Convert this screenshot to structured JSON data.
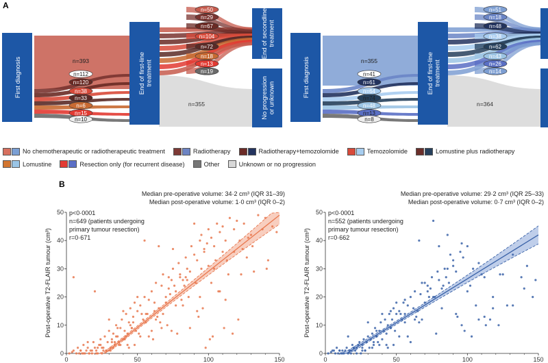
{
  "panel_labels": {
    "a": "A",
    "b": "B"
  },
  "sankey": {
    "node_labels": {
      "first": "First diagnosis",
      "firstline": "End of first-line treatment",
      "second": "End of secondline treatment",
      "noprog": "No progression or unknown"
    },
    "left": {
      "top_flow": "n=393",
      "stack1": [
        "n=112",
        "n=120",
        "n=38",
        "n=33",
        "n=6",
        "n=15",
        "n=10"
      ],
      "stack2": [
        "n=50",
        "n=29",
        "n=67",
        "n=104",
        "n=72",
        "n=18",
        "n=13",
        "n=19"
      ],
      "noprog": "n=355"
    },
    "right": {
      "top_flow": "n=355",
      "stack1": [
        "n=41",
        "n=61",
        "n=64",
        "n=74",
        "n=48",
        "n=13",
        "n=8"
      ],
      "stack2": [
        "n=51",
        "n=18",
        "n=48",
        "n=38",
        "n=62",
        "n=43",
        "n=26",
        "n=14"
      ],
      "noprog": "n=364"
    },
    "colors": {
      "left": [
        "#c55a4c",
        "#7a3430",
        "#6a2a24",
        "#d84a3a",
        "#5a2a26",
        "#c86a32",
        "#e23a32",
        "#6a6a6a",
        "#cfcfcf"
      ],
      "right": [
        "#7d9ed2",
        "#6a85c6",
        "#23335e",
        "#a8ccef",
        "#26405c",
        "#9cc4e4",
        "#5a6fc4",
        "#6a6a6a",
        "#cfcfcf"
      ]
    }
  },
  "legend": [
    {
      "label": "No chemotherapeutic or radiotherapeutic treatment",
      "c1": "#d7705f",
      "c2": "#7a9fd4"
    },
    {
      "label": "Radiotherapy",
      "c1": "#7e3a36",
      "c2": "#6d84c4"
    },
    {
      "label": "Radiotherapy+temozolomide",
      "c1": "#6b2b26",
      "c2": "#23335e"
    },
    {
      "label": "Temozolomide",
      "c1": "#d84a3a",
      "c2": "#a7cdef"
    },
    {
      "label": "Lomustine plus radiotherapy",
      "c1": "#6a2e2a",
      "c2": "#26405c"
    },
    {
      "label": "Lomustine",
      "c1": "#d2752f",
      "c2": "#9ac5e6"
    },
    {
      "label": "Resection only (for recurrent disease)",
      "c1": "#e23a32",
      "c2": "#5b6fc6"
    },
    {
      "label": "Other",
      "c1": "#777777"
    },
    {
      "label": "Unknown or no progression",
      "c1": "#d8d8d8"
    }
  ],
  "chart_data": [
    {
      "type": "scatter",
      "title": "",
      "xlabel": "",
      "ylabel": "Post-operative T2-FLAIR tumour (cm³)",
      "xlim": [
        0,
        150
      ],
      "ylim": [
        0,
        50
      ],
      "xticks": [
        0,
        50,
        100,
        150
      ],
      "yticks": [
        0,
        10,
        20,
        30,
        40,
        50
      ],
      "annotations": [
        "Median pre-operative volume: 34·2 cm³ (IQR 31–39)",
        "Median post-operative volume: 1·0 cm³ (IQR 0–2)"
      ],
      "stats": [
        "p<0·0001",
        "n=649 (patients undergoing",
        "primary tumour resection)",
        "r=0·671"
      ],
      "color": "#e8784f",
      "fit": {
        "x": [
          27,
          150
        ],
        "y": [
          0,
          49
        ]
      },
      "ci": {
        "x": [
          15,
          150
        ],
        "lower": [
          0,
          47
        ],
        "upper": [
          0,
          52
        ]
      },
      "x": [
        2,
        4,
        5,
        7,
        8,
        9,
        10,
        11,
        12,
        13,
        14,
        15,
        16,
        17,
        18,
        19,
        20,
        21,
        22,
        23,
        24,
        25,
        26,
        27,
        28,
        29,
        30,
        31,
        32,
        33,
        34,
        35,
        36,
        37,
        38,
        39,
        40,
        41,
        42,
        43,
        44,
        45,
        46,
        47,
        48,
        49,
        50,
        52,
        54,
        55,
        56,
        58,
        60,
        62,
        63,
        65,
        67,
        68,
        70,
        72,
        74,
        75,
        77,
        79,
        80,
        82,
        84,
        85,
        87,
        88,
        90,
        92,
        94,
        95,
        97,
        99,
        100,
        102,
        104,
        106,
        108,
        110,
        112,
        115,
        118,
        120,
        125,
        130,
        135,
        140,
        145,
        5,
        15,
        25,
        35,
        45,
        55,
        65,
        75,
        85,
        95,
        105,
        30,
        40,
        50,
        60,
        70,
        80,
        90,
        100,
        110,
        20,
        36,
        48,
        58,
        68,
        76,
        86,
        96,
        18,
        28,
        38,
        46,
        56,
        64,
        72,
        82,
        92,
        102,
        112,
        122,
        132,
        142,
        33,
        43,
        53,
        63,
        73,
        83,
        93,
        103,
        113,
        123,
        10,
        12,
        16,
        22,
        26,
        34,
        44,
        52,
        66,
        78,
        98,
        108,
        118,
        128,
        138,
        148,
        24,
        32,
        42,
        62,
        74,
        84,
        94,
        104,
        114,
        124,
        21,
        31,
        41,
        51,
        61,
        71,
        81,
        91,
        101,
        111,
        121,
        131,
        141,
        37,
        47,
        57,
        67,
        77,
        87,
        97,
        107,
        117,
        127
      ],
      "y": [
        0,
        0.5,
        1,
        0,
        2,
        0,
        1,
        0,
        3,
        0,
        1,
        2,
        0,
        1,
        0,
        4,
        2,
        1,
        0,
        3,
        5,
        0,
        2,
        6,
        1,
        4,
        8,
        2,
        5,
        7,
        3,
        10,
        6,
        4,
        9,
        12,
        5,
        8,
        14,
        7,
        11,
        16,
        9,
        13,
        18,
        8,
        15,
        17,
        12,
        20,
        14,
        19,
        22,
        18,
        25,
        16,
        24,
        28,
        20,
        27,
        26,
        30,
        22,
        32,
        28,
        26,
        34,
        30,
        29,
        38,
        35,
        33,
        40,
        42,
        36,
        39,
        44,
        41,
        38,
        46,
        43,
        45,
        40,
        48,
        44,
        47,
        46,
        42,
        49,
        48,
        45,
        27,
        4,
        2,
        6,
        10,
        40,
        38,
        37,
        26,
        30,
        33,
        12,
        15,
        20,
        8,
        18,
        27,
        46,
        31,
        36,
        22,
        9,
        3,
        6,
        14,
        24,
        20,
        16,
        1,
        1,
        3,
        9,
        11,
        13,
        23,
        17,
        15,
        25,
        19,
        40,
        29,
        33,
        2,
        3,
        14,
        12,
        21,
        24,
        13,
        6,
        33,
        28,
        1,
        0,
        0,
        2,
        1,
        4,
        2,
        6,
        11,
        7,
        2,
        22,
        36,
        41,
        44,
        43,
        3,
        4,
        6,
        15,
        8,
        27,
        20,
        30,
        28,
        37,
        0,
        1,
        5,
        7,
        5,
        10,
        19,
        25,
        5,
        9,
        12,
        38,
        30,
        3,
        11,
        14,
        9,
        17,
        9,
        37,
        22,
        7,
        34
      ]
    },
    {
      "type": "scatter",
      "title": "",
      "xlabel": "",
      "ylabel": "Post-operative T2-FLAIR tumour (cm³)",
      "xlim": [
        0,
        150
      ],
      "ylim": [
        0,
        50
      ],
      "xticks": [
        0,
        50,
        100,
        150
      ],
      "yticks": [
        0,
        10,
        20,
        30,
        40,
        50
      ],
      "annotations": [
        "Median pre-operative volume: 29·2 cm³ (IQR 25–33)",
        "Median post-operative volume: 0·7 cm³ (IQR 0–2)"
      ],
      "stats": [
        "p<0·0001",
        "n=552 (patients undergoing",
        "primary tumour resection)",
        "r=0·662"
      ],
      "color": "#3b63a8",
      "fit": {
        "x": [
          15,
          150
        ],
        "y": [
          0,
          42
        ]
      },
      "ci": {
        "x": [
          10,
          150
        ],
        "lower": [
          0,
          39
        ],
        "upper": [
          0,
          45
        ]
      },
      "x": [
        2,
        4,
        5,
        7,
        8,
        9,
        10,
        11,
        12,
        13,
        14,
        15,
        16,
        17,
        18,
        19,
        20,
        21,
        22,
        23,
        24,
        25,
        26,
        27,
        28,
        29,
        30,
        31,
        32,
        33,
        34,
        35,
        36,
        37,
        38,
        39,
        40,
        41,
        42,
        43,
        44,
        45,
        46,
        47,
        48,
        49,
        50,
        52,
        54,
        55,
        56,
        58,
        60,
        62,
        63,
        65,
        67,
        68,
        70,
        72,
        74,
        75,
        77,
        79,
        80,
        82,
        84,
        85,
        87,
        88,
        90,
        92,
        95,
        97,
        100,
        104,
        108,
        112,
        118,
        125,
        132,
        140,
        146,
        148,
        6,
        16,
        26,
        36,
        46,
        56,
        66,
        76,
        86,
        96,
        106,
        116,
        30,
        40,
        50,
        60,
        70,
        80,
        90,
        100,
        110,
        20,
        36,
        48,
        58,
        68,
        76,
        86,
        96,
        18,
        28,
        38,
        46,
        56,
        64,
        72,
        82,
        92,
        102,
        112,
        122,
        132,
        142,
        33,
        43,
        53,
        63,
        73,
        83,
        93,
        103,
        113,
        123,
        10,
        12,
        22,
        26,
        34,
        44,
        52,
        66,
        78,
        98,
        108,
        118,
        128,
        138
      ],
      "y": [
        0,
        0.5,
        1,
        0,
        2,
        0,
        1,
        0,
        1,
        0,
        1,
        2,
        0,
        1,
        0,
        3,
        2,
        1,
        0,
        3,
        4,
        0,
        2,
        5,
        1,
        4,
        6,
        2,
        5,
        7,
        3,
        9,
        6,
        4,
        8,
        11,
        5,
        8,
        12,
        7,
        10,
        14,
        9,
        12,
        16,
        8,
        14,
        15,
        12,
        18,
        14,
        17,
        20,
        16,
        22,
        15,
        21,
        25,
        18,
        24,
        23,
        27,
        20,
        29,
        26,
        23,
        30,
        27,
        25,
        35,
        31,
        29,
        36,
        34,
        38,
        30,
        32,
        27,
        20,
        28,
        35,
        23,
        20,
        26,
        1,
        6,
        3,
        6,
        15,
        19,
        40,
        47,
        42,
        39,
        17,
        12,
        11,
        14,
        18,
        4,
        25,
        38,
        33,
        22,
        28,
        2,
        8,
        3,
        6,
        12,
        20,
        30,
        10,
        1,
        1,
        3,
        9,
        11,
        13,
        22,
        16,
        14,
        24,
        13,
        10,
        17,
        31,
        2,
        3,
        14,
        12,
        20,
        24,
        13,
        6,
        10,
        28,
        1,
        0,
        2,
        1,
        4,
        2,
        6,
        11,
        7,
        8,
        12,
        16,
        17,
        27
      ]
    }
  ]
}
